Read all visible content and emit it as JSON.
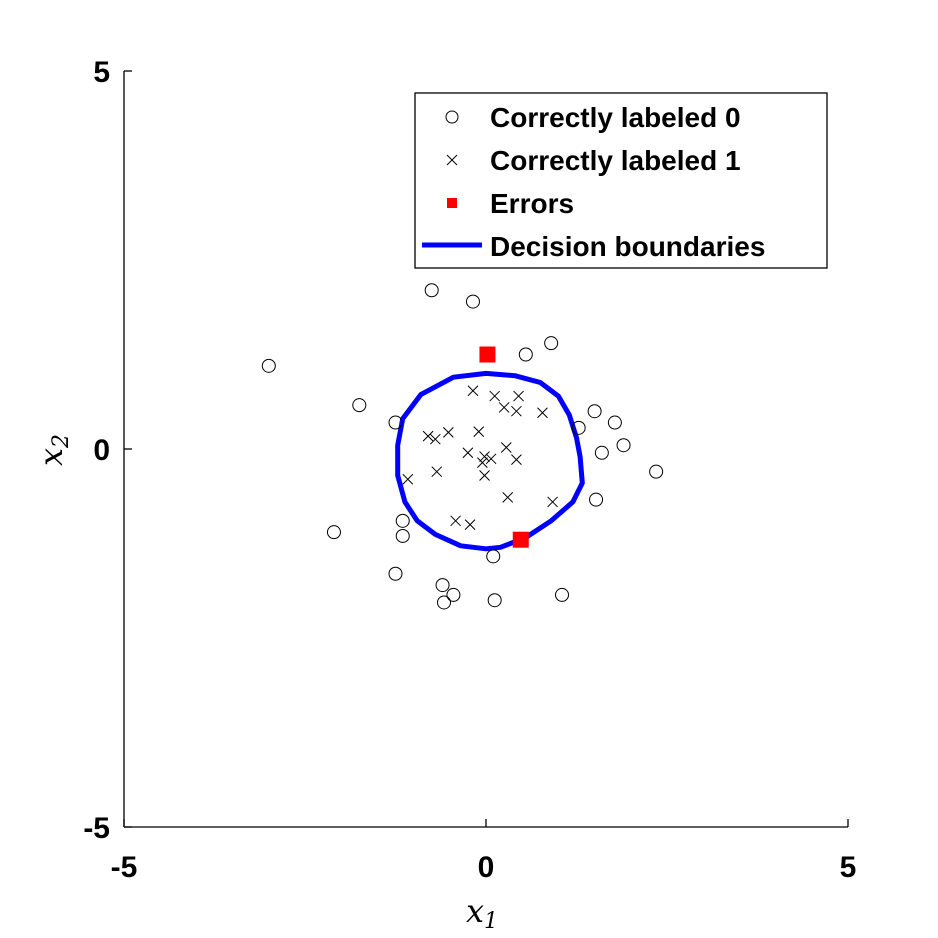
{
  "chart_data": {
    "type": "scatter",
    "xlabel": "x1",
    "ylabel": "x2",
    "xlim": [
      -5,
      5
    ],
    "ylim": [
      -5,
      5
    ],
    "x_ticks": [
      "-5",
      "0",
      "5"
    ],
    "y_ticks": [
      "5",
      "0",
      "-5"
    ],
    "grid": false,
    "legend_position": "top-right",
    "legend": [
      {
        "label": "Correctly labeled 0",
        "marker": "circle-icon"
      },
      {
        "label": "Correctly labeled 1",
        "marker": "cross-icon"
      },
      {
        "label": "Errors",
        "marker": "square-icon"
      },
      {
        "label": "Decision boundaries",
        "marker": "line-icon"
      }
    ],
    "colors": {
      "class0": "#000000",
      "class1": "#000000",
      "errors": "#ff0000",
      "boundary": "#0000ff"
    },
    "series": [
      {
        "name": "Correctly labeled 0",
        "points": [
          [
            -0.75,
            2.1
          ],
          [
            -0.18,
            1.95
          ],
          [
            0.55,
            1.25
          ],
          [
            0.9,
            1.4
          ],
          [
            -3.0,
            1.1
          ],
          [
            -1.75,
            0.58
          ],
          [
            -1.25,
            0.35
          ],
          [
            1.5,
            0.5
          ],
          [
            1.78,
            0.35
          ],
          [
            1.28,
            0.28
          ],
          [
            1.9,
            0.05
          ],
          [
            1.6,
            -0.05
          ],
          [
            2.35,
            -0.3
          ],
          [
            1.52,
            -0.67
          ],
          [
            -2.1,
            -1.1
          ],
          [
            -1.15,
            -0.95
          ],
          [
            -1.15,
            -1.15
          ],
          [
            0.1,
            -1.42
          ],
          [
            -1.25,
            -1.65
          ],
          [
            -0.6,
            -1.8
          ],
          [
            -0.45,
            -1.93
          ],
          [
            -0.58,
            -2.03
          ],
          [
            0.12,
            -2.0
          ],
          [
            1.05,
            -1.93
          ]
        ]
      },
      {
        "name": "Correctly labeled 1",
        "points": [
          [
            -0.18,
            0.77
          ],
          [
            0.12,
            0.7
          ],
          [
            0.45,
            0.7
          ],
          [
            0.25,
            0.55
          ],
          [
            0.42,
            0.5
          ],
          [
            0.78,
            0.48
          ],
          [
            -0.1,
            0.23
          ],
          [
            -0.52,
            0.22
          ],
          [
            -0.8,
            0.17
          ],
          [
            -0.7,
            0.13
          ],
          [
            0.28,
            0.02
          ],
          [
            -0.25,
            -0.05
          ],
          [
            -0.02,
            -0.1
          ],
          [
            0.07,
            -0.13
          ],
          [
            0.42,
            -0.14
          ],
          [
            -0.05,
            -0.18
          ],
          [
            -0.68,
            -0.3
          ],
          [
            -0.02,
            -0.35
          ],
          [
            -1.08,
            -0.4
          ],
          [
            0.3,
            -0.64
          ],
          [
            0.92,
            -0.7
          ],
          [
            -0.42,
            -0.95
          ],
          [
            -0.22,
            -1.0
          ]
        ]
      },
      {
        "name": "Errors",
        "points": [
          [
            0.02,
            1.25
          ],
          [
            0.48,
            -1.2
          ]
        ]
      },
      {
        "name": "Decision boundaries",
        "type": "line",
        "points": [
          [
            0.0,
            1.0
          ],
          [
            0.4,
            0.97
          ],
          [
            0.75,
            0.88
          ],
          [
            1.0,
            0.7
          ],
          [
            1.15,
            0.45
          ],
          [
            1.25,
            0.15
          ],
          [
            1.3,
            -0.1
          ],
          [
            1.33,
            -0.45
          ],
          [
            1.2,
            -0.7
          ],
          [
            0.9,
            -0.95
          ],
          [
            0.55,
            -1.17
          ],
          [
            0.2,
            -1.3
          ],
          [
            0.0,
            -1.32
          ],
          [
            -0.35,
            -1.28
          ],
          [
            -0.7,
            -1.13
          ],
          [
            -0.95,
            -0.95
          ],
          [
            -1.12,
            -0.7
          ],
          [
            -1.22,
            -0.35
          ],
          [
            -1.22,
            0.05
          ],
          [
            -1.15,
            0.4
          ],
          [
            -0.9,
            0.72
          ],
          [
            -0.45,
            0.95
          ],
          [
            0.0,
            1.0
          ]
        ]
      }
    ]
  }
}
